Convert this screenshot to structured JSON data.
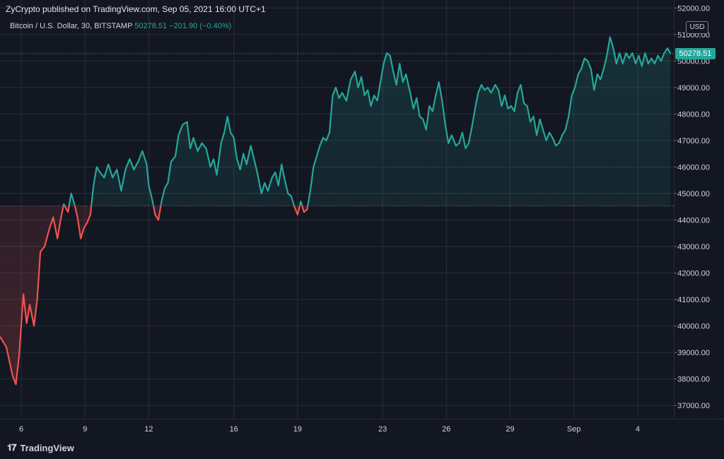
{
  "header": {
    "publish_text": "ZyCrypto published on TradingView.com, Sep 05, 2021 16:00 UTC+1"
  },
  "legend": {
    "symbol": "Bitcoin / U.S. Dollar, 30, BITSTAMP",
    "last": "50278.51",
    "change": "−201.90 (−0.40%)"
  },
  "price_axis": {
    "currency": "USD",
    "last_price_badge": "50278.51"
  },
  "footer": {
    "brand": "TradingView",
    "logo": "tradingview-logo-icon"
  },
  "colors": {
    "background": "#131722",
    "up": "#26a69a",
    "down": "#ef5350",
    "grid": "#2a2e39"
  },
  "chart_data": {
    "type": "area",
    "ylim": [
      36500,
      52300
    ],
    "baseline": 44530,
    "last_price": 50278.51,
    "y_ticks": [
      "37000.00",
      "38000.00",
      "39000.00",
      "40000.00",
      "41000.00",
      "42000.00",
      "43000.00",
      "44000.00",
      "45000.00",
      "46000.00",
      "47000.00",
      "48000.00",
      "49000.00",
      "50000.00",
      "51000.00",
      "52000.00"
    ],
    "x_ticks": [
      {
        "label": "6",
        "t": 6
      },
      {
        "label": "9",
        "t": 9
      },
      {
        "label": "12",
        "t": 12
      },
      {
        "label": "16",
        "t": 16
      },
      {
        "label": "19",
        "t": 19
      },
      {
        "label": "23",
        "t": 23
      },
      {
        "label": "26",
        "t": 26
      },
      {
        "label": "29",
        "t": 29
      },
      {
        "label": "Sep",
        "t": 32
      },
      {
        "label": "4",
        "t": 35
      }
    ],
    "xlim": [
      5.0,
      36.7
    ],
    "points": [
      [
        5.0,
        39600
      ],
      [
        5.3,
        39200
      ],
      [
        5.6,
        38100
      ],
      [
        5.75,
        37800
      ],
      [
        5.9,
        38900
      ],
      [
        6.1,
        41200
      ],
      [
        6.25,
        40100
      ],
      [
        6.4,
        40800
      ],
      [
        6.6,
        40000
      ],
      [
        6.75,
        41000
      ],
      [
        6.9,
        42800
      ],
      [
        7.1,
        43000
      ],
      [
        7.3,
        43600
      ],
      [
        7.5,
        44100
      ],
      [
        7.7,
        43300
      ],
      [
        7.85,
        44000
      ],
      [
        8.0,
        44600
      ],
      [
        8.2,
        44300
      ],
      [
        8.35,
        45000
      ],
      [
        8.5,
        44600
      ],
      [
        8.65,
        44100
      ],
      [
        8.8,
        43300
      ],
      [
        8.95,
        43700
      ],
      [
        9.1,
        43900
      ],
      [
        9.25,
        44200
      ],
      [
        9.4,
        45300
      ],
      [
        9.55,
        46000
      ],
      [
        9.7,
        45800
      ],
      [
        9.9,
        45600
      ],
      [
        10.1,
        46100
      ],
      [
        10.3,
        45600
      ],
      [
        10.5,
        45900
      ],
      [
        10.7,
        45100
      ],
      [
        10.9,
        45900
      ],
      [
        11.1,
        46300
      ],
      [
        11.3,
        45900
      ],
      [
        11.5,
        46200
      ],
      [
        11.7,
        46600
      ],
      [
        11.9,
        46100
      ],
      [
        12.0,
        45300
      ],
      [
        12.15,
        44800
      ],
      [
        12.3,
        44200
      ],
      [
        12.45,
        44000
      ],
      [
        12.6,
        44700
      ],
      [
        12.75,
        45200
      ],
      [
        12.9,
        45400
      ],
      [
        13.05,
        46200
      ],
      [
        13.25,
        46400
      ],
      [
        13.4,
        47200
      ],
      [
        13.6,
        47600
      ],
      [
        13.8,
        47700
      ],
      [
        13.95,
        46700
      ],
      [
        14.1,
        47100
      ],
      [
        14.3,
        46600
      ],
      [
        14.5,
        46900
      ],
      [
        14.7,
        46700
      ],
      [
        14.9,
        46000
      ],
      [
        15.05,
        46300
      ],
      [
        15.2,
        45700
      ],
      [
        15.4,
        46900
      ],
      [
        15.55,
        47300
      ],
      [
        15.7,
        47900
      ],
      [
        15.85,
        47300
      ],
      [
        16.0,
        47100
      ],
      [
        16.15,
        46300
      ],
      [
        16.3,
        45900
      ],
      [
        16.45,
        46500
      ],
      [
        16.6,
        46100
      ],
      [
        16.8,
        46800
      ],
      [
        16.95,
        46300
      ],
      [
        17.1,
        45800
      ],
      [
        17.3,
        45000
      ],
      [
        17.45,
        45400
      ],
      [
        17.6,
        45100
      ],
      [
        17.8,
        45600
      ],
      [
        17.95,
        45800
      ],
      [
        18.1,
        45300
      ],
      [
        18.25,
        46100
      ],
      [
        18.4,
        45500
      ],
      [
        18.55,
        45000
      ],
      [
        18.7,
        44900
      ],
      [
        18.85,
        44500
      ],
      [
        19.0,
        44200
      ],
      [
        19.15,
        44700
      ],
      [
        19.3,
        44300
      ],
      [
        19.45,
        44400
      ],
      [
        19.6,
        45100
      ],
      [
        19.75,
        46000
      ],
      [
        19.9,
        46400
      ],
      [
        20.05,
        46800
      ],
      [
        20.2,
        47100
      ],
      [
        20.35,
        47000
      ],
      [
        20.5,
        47300
      ],
      [
        20.65,
        48700
      ],
      [
        20.8,
        49000
      ],
      [
        20.95,
        48600
      ],
      [
        21.1,
        48800
      ],
      [
        21.3,
        48500
      ],
      [
        21.5,
        49300
      ],
      [
        21.7,
        49600
      ],
      [
        21.85,
        49000
      ],
      [
        22.0,
        49400
      ],
      [
        22.15,
        48700
      ],
      [
        22.3,
        48900
      ],
      [
        22.45,
        48300
      ],
      [
        22.6,
        48700
      ],
      [
        22.75,
        48500
      ],
      [
        22.9,
        49200
      ],
      [
        23.05,
        49900
      ],
      [
        23.2,
        50300
      ],
      [
        23.35,
        50200
      ],
      [
        23.5,
        49600
      ],
      [
        23.65,
        49100
      ],
      [
        23.8,
        49900
      ],
      [
        23.95,
        49200
      ],
      [
        24.1,
        49500
      ],
      [
        24.3,
        48800
      ],
      [
        24.45,
        48200
      ],
      [
        24.6,
        48600
      ],
      [
        24.75,
        47900
      ],
      [
        24.9,
        47800
      ],
      [
        25.05,
        47400
      ],
      [
        25.2,
        48300
      ],
      [
        25.35,
        48100
      ],
      [
        25.5,
        48700
      ],
      [
        25.65,
        49200
      ],
      [
        25.8,
        48500
      ],
      [
        25.95,
        47600
      ],
      [
        26.1,
        46900
      ],
      [
        26.25,
        47200
      ],
      [
        26.45,
        46800
      ],
      [
        26.6,
        46900
      ],
      [
        26.75,
        47300
      ],
      [
        26.9,
        46700
      ],
      [
        27.05,
        46900
      ],
      [
        27.2,
        47500
      ],
      [
        27.35,
        48200
      ],
      [
        27.5,
        48800
      ],
      [
        27.65,
        49100
      ],
      [
        27.8,
        48900
      ],
      [
        27.95,
        49000
      ],
      [
        28.1,
        48800
      ],
      [
        28.3,
        49100
      ],
      [
        28.45,
        48900
      ],
      [
        28.6,
        48300
      ],
      [
        28.75,
        48700
      ],
      [
        28.9,
        48200
      ],
      [
        29.05,
        48300
      ],
      [
        29.2,
        48100
      ],
      [
        29.35,
        48800
      ],
      [
        29.5,
        49100
      ],
      [
        29.65,
        48400
      ],
      [
        29.8,
        48300
      ],
      [
        29.95,
        47700
      ],
      [
        30.1,
        47900
      ],
      [
        30.25,
        47200
      ],
      [
        30.4,
        47800
      ],
      [
        30.55,
        47400
      ],
      [
        30.7,
        47000
      ],
      [
        30.85,
        47300
      ],
      [
        31.0,
        47100
      ],
      [
        31.15,
        46800
      ],
      [
        31.3,
        46900
      ],
      [
        31.45,
        47200
      ],
      [
        31.6,
        47400
      ],
      [
        31.75,
        47900
      ],
      [
        31.9,
        48700
      ],
      [
        32.05,
        49000
      ],
      [
        32.2,
        49500
      ],
      [
        32.35,
        49700
      ],
      [
        32.5,
        50100
      ],
      [
        32.65,
        50000
      ],
      [
        32.8,
        49700
      ],
      [
        32.95,
        48900
      ],
      [
        33.1,
        49500
      ],
      [
        33.25,
        49300
      ],
      [
        33.4,
        49700
      ],
      [
        33.55,
        50200
      ],
      [
        33.7,
        50900
      ],
      [
        33.85,
        50500
      ],
      [
        34.0,
        49900
      ],
      [
        34.15,
        50300
      ],
      [
        34.3,
        49900
      ],
      [
        34.45,
        50300
      ],
      [
        34.6,
        50100
      ],
      [
        34.75,
        50300
      ],
      [
        34.9,
        49900
      ],
      [
        35.05,
        50200
      ],
      [
        35.2,
        49800
      ],
      [
        35.35,
        50300
      ],
      [
        35.5,
        49900
      ],
      [
        35.65,
        50100
      ],
      [
        35.8,
        49900
      ],
      [
        35.95,
        50200
      ],
      [
        36.1,
        50000
      ],
      [
        36.25,
        50300
      ],
      [
        36.4,
        50480
      ],
      [
        36.55,
        50278.51
      ]
    ]
  }
}
